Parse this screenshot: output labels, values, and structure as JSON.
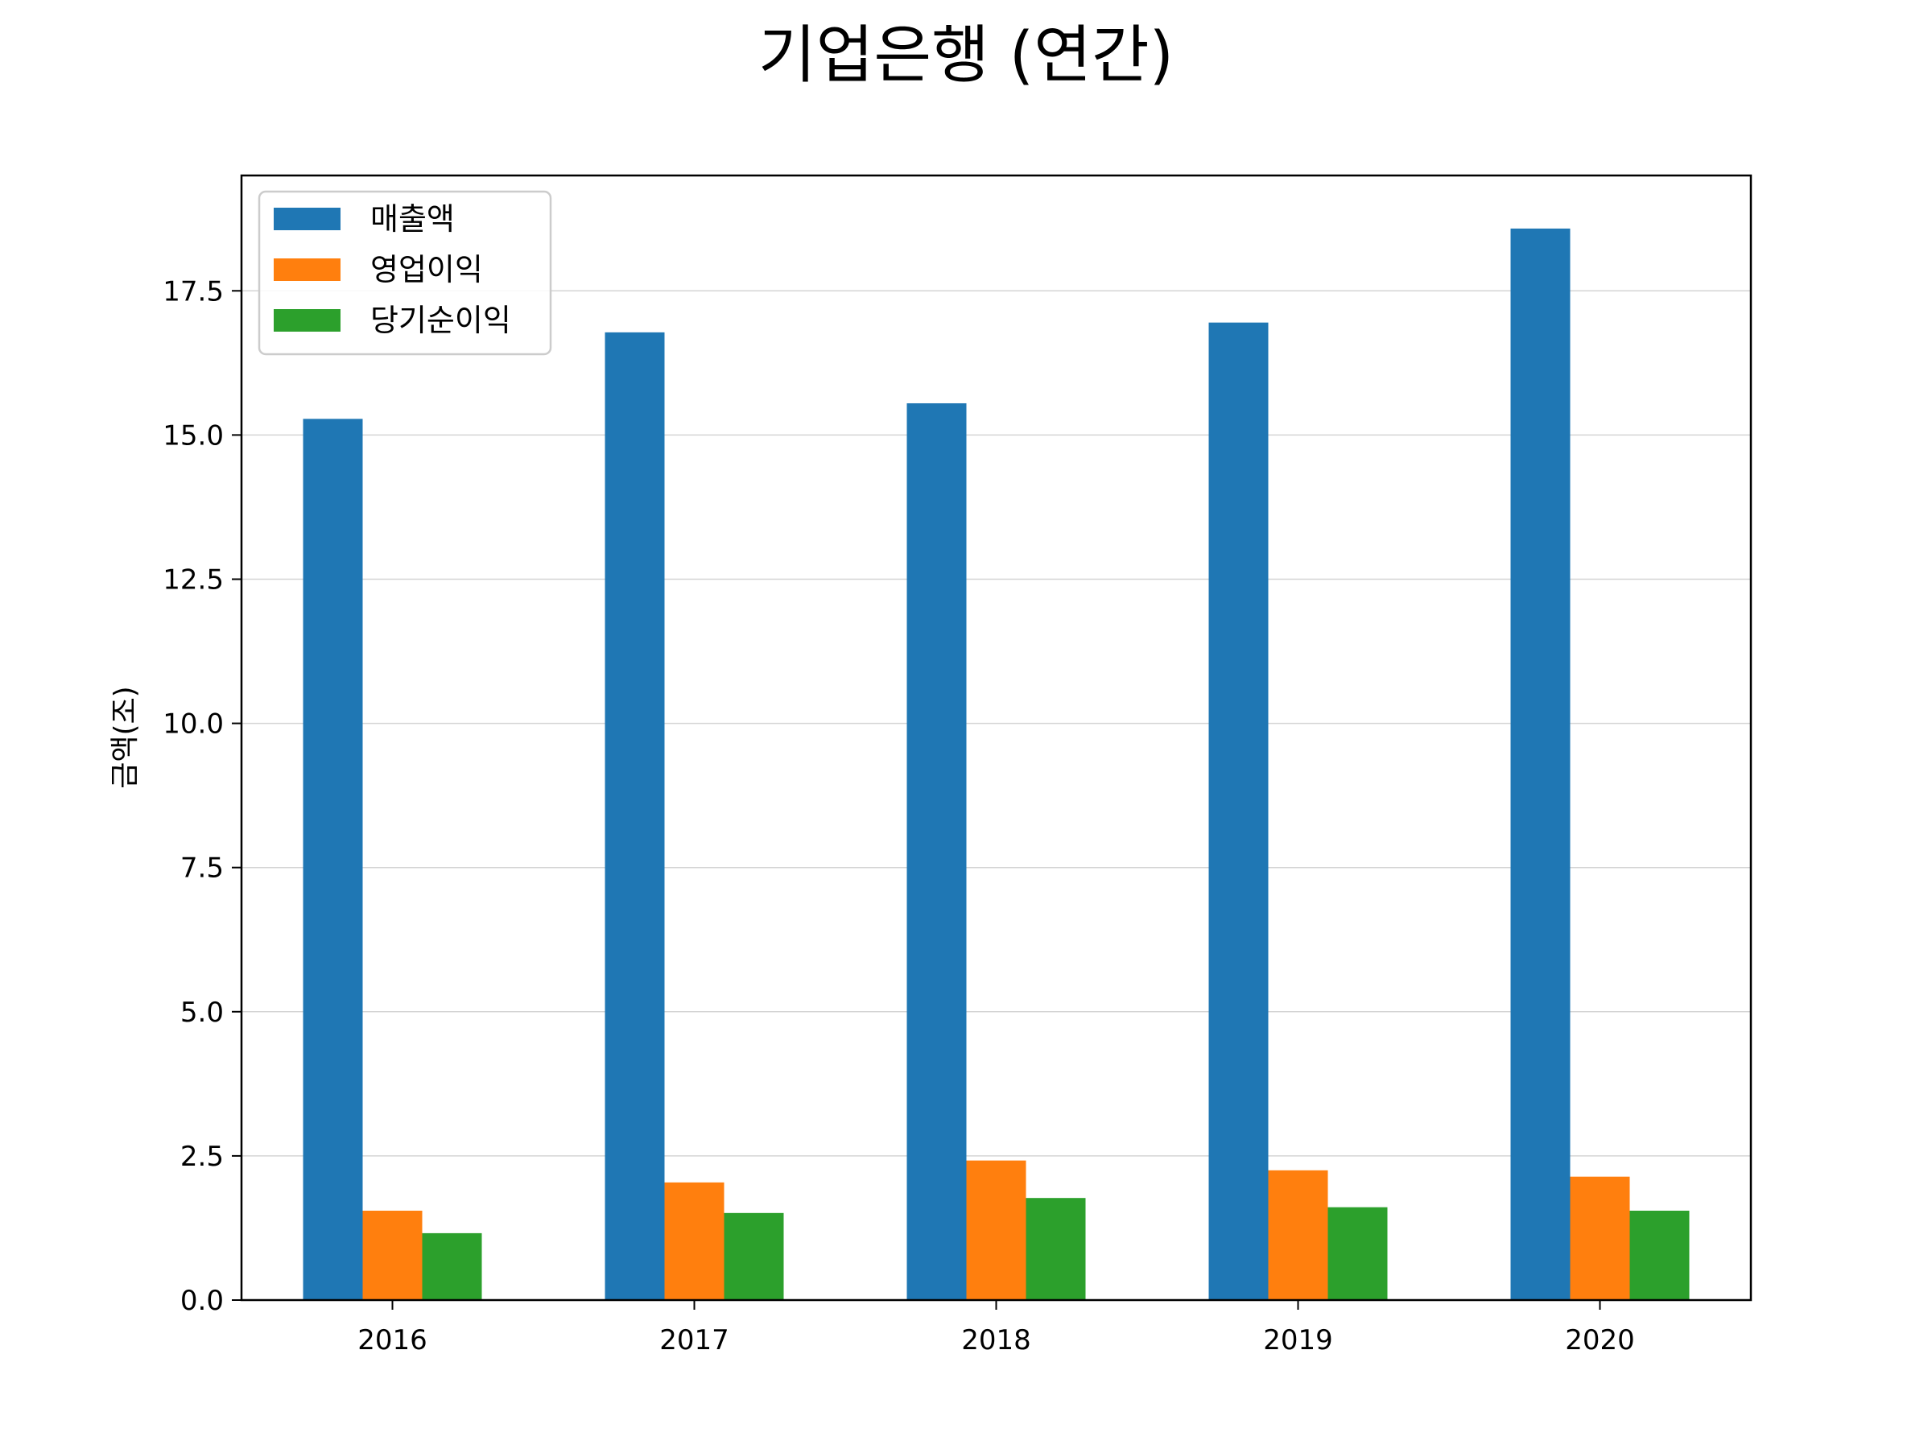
{
  "chart_data": {
    "type": "bar",
    "title": "기업은행 (연간)",
    "xlabel": "",
    "ylabel": "금액(조)",
    "categories": [
      "2016",
      "2017",
      "2018",
      "2019",
      "2020"
    ],
    "series": [
      {
        "name": "매출액",
        "color": "#1f77b4",
        "values": [
          15.28,
          16.78,
          15.55,
          16.95,
          18.58
        ]
      },
      {
        "name": "영업이익",
        "color": "#ff7f0e",
        "values": [
          1.55,
          2.04,
          2.42,
          2.25,
          2.14
        ]
      },
      {
        "name": "당기순이익",
        "color": "#2ca02c",
        "values": [
          1.16,
          1.51,
          1.77,
          1.61,
          1.55
        ]
      }
    ],
    "ylim": [
      0,
      19.5
    ],
    "yticks": [
      0,
      2.5,
      5,
      7.5,
      10,
      12.5,
      15,
      17.5
    ],
    "ytick_labels": [
      "0.0",
      "2.5",
      "5.0",
      "7.5",
      "10.0",
      "12.5",
      "15.0",
      "17.5"
    ],
    "grid": "horizontal",
    "legend_position": "upper-left"
  }
}
